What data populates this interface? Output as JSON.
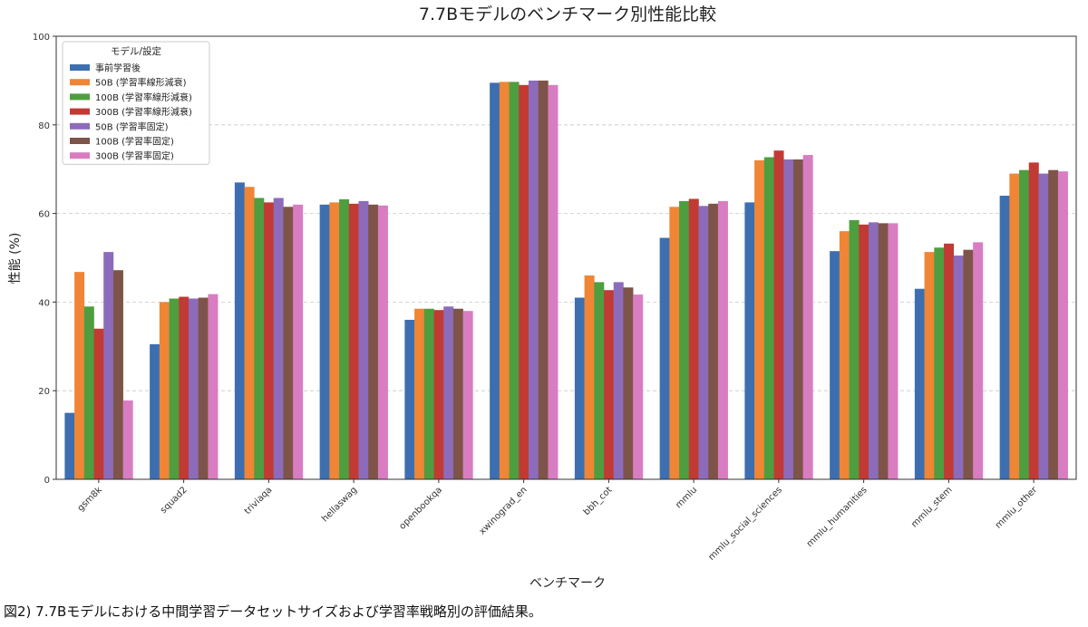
{
  "caption": "図2) 7.7Bモデルにおける中間学習データセットサイズおよび学習率戦略別の評価結果。",
  "chart_data": {
    "type": "bar",
    "title": "7.7Bモデルのベンチマーク別性能比較",
    "xlabel": "ベンチマーク",
    "ylabel": "性能 (%)",
    "ylim": [
      0,
      100
    ],
    "yticks": [
      0,
      20,
      40,
      60,
      80,
      100
    ],
    "grid": true,
    "legend_title": "モデル/設定",
    "legend_position": "top-left",
    "categories": [
      "gsm8k",
      "squad2",
      "triviaqa",
      "hellaswag",
      "openbookqa",
      "xwinograd_en",
      "bbh_cot",
      "mmlu",
      "mmlu_social_sciences",
      "mmlu_humanities",
      "mmlu_stem",
      "mmlu_other"
    ],
    "series": [
      {
        "name": "事前学習後",
        "color": "#3d6fb0",
        "values": [
          15.0,
          30.5,
          67.0,
          62.0,
          36.0,
          89.5,
          41.0,
          54.5,
          62.5,
          51.5,
          43.0,
          64.0
        ]
      },
      {
        "name": "50B (学習率線形減衰)",
        "color": "#ef8535",
        "values": [
          46.8,
          40.0,
          66.0,
          62.5,
          38.5,
          89.7,
          46.0,
          61.5,
          72.0,
          56.0,
          51.3,
          69.0
        ]
      },
      {
        "name": "100B (学習率線形減衰)",
        "color": "#4e9e3f",
        "values": [
          39.0,
          40.8,
          63.5,
          63.2,
          38.5,
          89.7,
          44.5,
          62.8,
          72.7,
          58.5,
          52.3,
          69.8
        ]
      },
      {
        "name": "300B (学習率線形減衰)",
        "color": "#c23a34",
        "values": [
          34.0,
          41.2,
          62.5,
          62.2,
          38.2,
          89.0,
          42.7,
          63.3,
          74.2,
          57.5,
          53.2,
          71.5
        ]
      },
      {
        "name": "50B (学習率固定)",
        "color": "#8c6cba",
        "values": [
          51.3,
          40.8,
          63.5,
          62.8,
          39.0,
          90.0,
          44.5,
          61.7,
          72.2,
          58.0,
          50.5,
          69.0
        ]
      },
      {
        "name": "100B (学習率固定)",
        "color": "#7e5448",
        "values": [
          47.2,
          41.0,
          61.5,
          62.0,
          38.5,
          90.0,
          43.3,
          62.2,
          72.2,
          57.8,
          51.8,
          69.8
        ]
      },
      {
        "name": "300B (学習率固定)",
        "color": "#d97dc2",
        "values": [
          17.8,
          41.8,
          62.0,
          61.8,
          38.0,
          89.0,
          41.7,
          62.8,
          73.2,
          57.8,
          53.5,
          69.5
        ]
      }
    ]
  }
}
